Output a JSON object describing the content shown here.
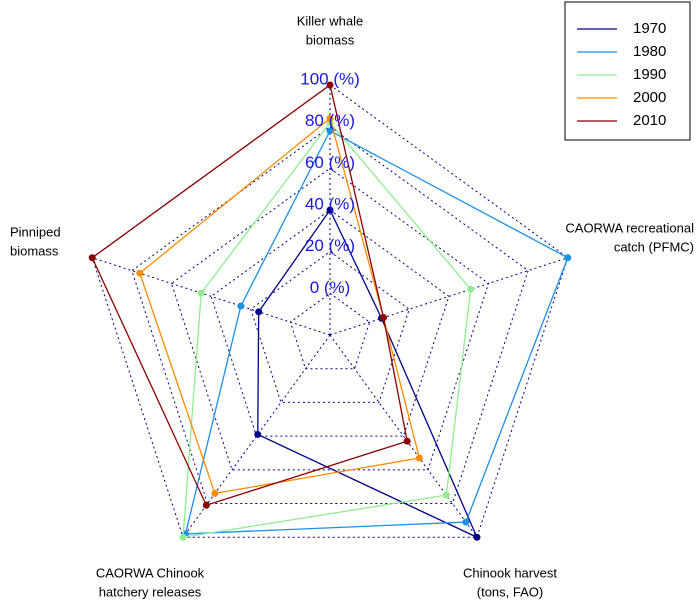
{
  "chart_data": {
    "type": "radar",
    "categories": [
      [
        "Killer whale",
        "biomass"
      ],
      [
        "CAORWA recreational",
        "catch (PFMC)"
      ],
      [
        "Chinook harvest",
        "(tons, FAO)"
      ],
      [
        "CAORWA Chinook",
        "hatchery releases"
      ],
      [
        "Pinniped",
        "biomass"
      ]
    ],
    "rlim": [
      0,
      100
    ],
    "rticks": [
      {
        "value": 0,
        "label": "0 (%)"
      },
      {
        "value": 20,
        "label": "20 (%)"
      },
      {
        "value": 40,
        "label": "40 (%)"
      },
      {
        "value": 60,
        "label": "60 (%)"
      },
      {
        "value": 80,
        "label": "80 (%)"
      },
      {
        "value": 100,
        "label": "100 (%)"
      }
    ],
    "grid": true,
    "legend": "top-right",
    "series": [
      {
        "name": "1970",
        "color": "#00008b",
        "values": [
          40,
          6,
          100,
          39,
          16
        ]
      },
      {
        "name": "1980",
        "color": "#1c8fe6",
        "values": [
          78,
          100,
          91,
          98,
          25
        ]
      },
      {
        "name": "1990",
        "color": "#90ee90",
        "values": [
          82,
          51,
          75,
          100,
          45
        ]
      },
      {
        "name": "2000",
        "color": "#ff8c00",
        "values": [
          84,
          7,
          53,
          74,
          76
        ]
      },
      {
        "name": "2010",
        "color": "#8b0000",
        "values": [
          100,
          7,
          43,
          81,
          100
        ]
      }
    ]
  }
}
